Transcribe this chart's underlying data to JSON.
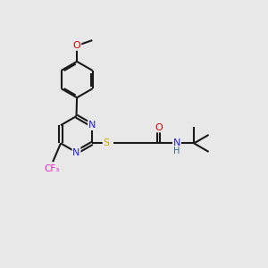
{
  "background_color": "#e8e8e8",
  "bond_color": "#1a1a1a",
  "bond_lw": 1.5,
  "dbo": 0.055,
  "atom_colors": {
    "O": "#cc0000",
    "N": "#2222dd",
    "S": "#ccaa00",
    "F": "#ee22cc",
    "H": "#336688"
  },
  "fs": 8.0,
  "fs_small": 7.0,
  "xlim": [
    0,
    10
  ],
  "ylim": [
    0,
    10
  ],
  "ring_r": 0.68
}
